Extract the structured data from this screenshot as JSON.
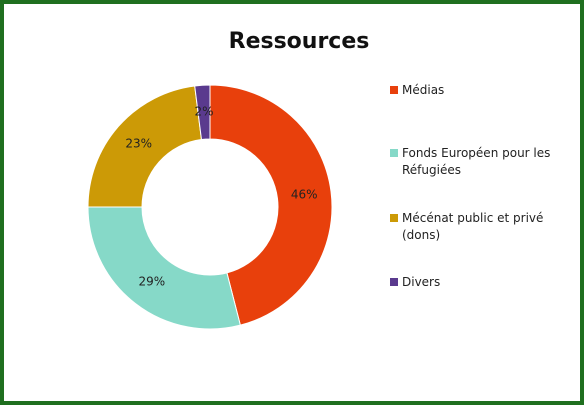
{
  "chart_data": {
    "type": "donut",
    "title": "Ressources",
    "categories": [
      "Médias",
      "Fonds Européen pour les Réfugiées",
      "Mécénat public et privé (dons)",
      "Divers"
    ],
    "values": [
      46,
      29,
      23,
      2
    ],
    "value_labels": [
      "46%",
      "29%",
      "23%",
      "2%"
    ],
    "colors": [
      "#e8400c",
      "#86d9c8",
      "#cc9a06",
      "#5a3a8e"
    ],
    "legend": "right"
  }
}
